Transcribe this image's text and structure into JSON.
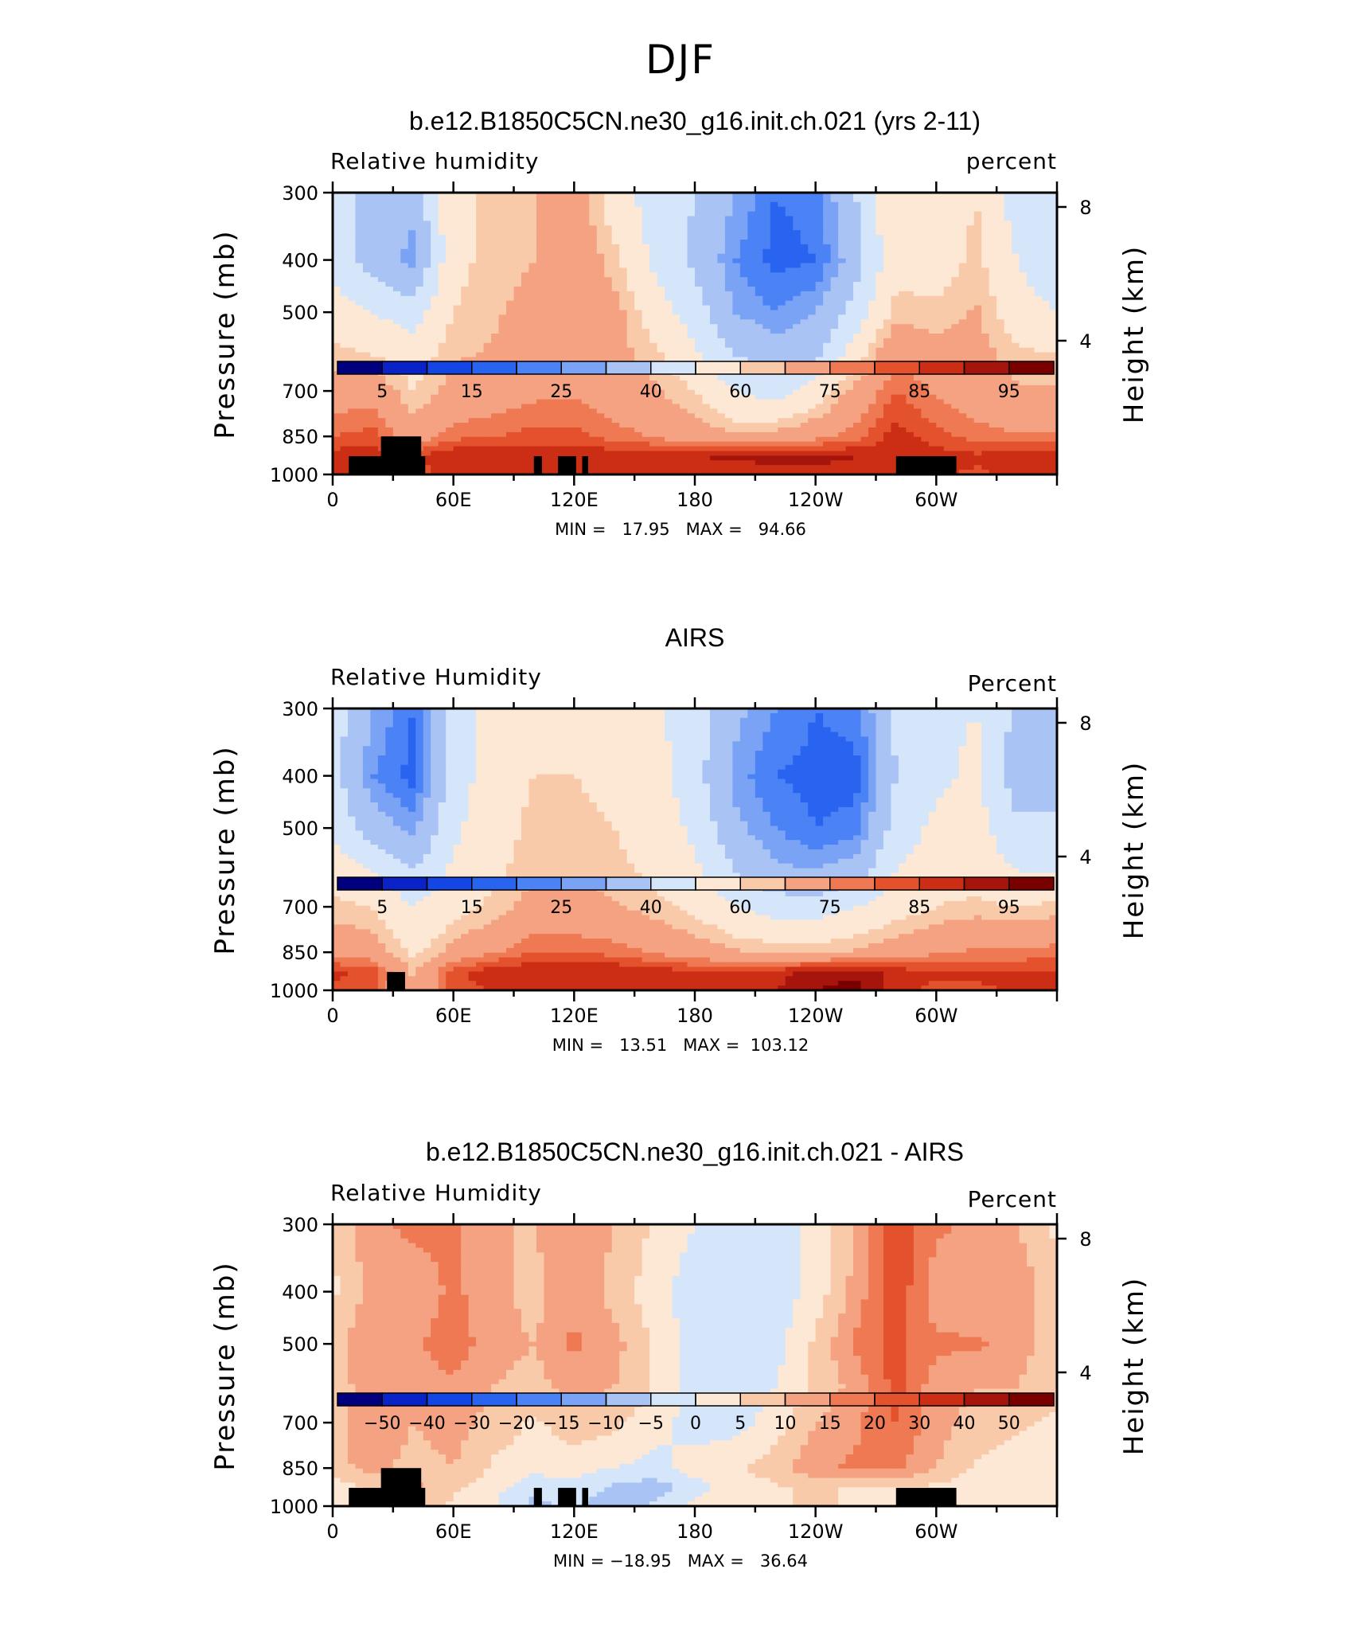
{
  "figure": {
    "title": "DJF"
  },
  "colors": {
    "levels": [
      "#00007f",
      "#0a23c8",
      "#1446e6",
      "#2864f0",
      "#4b82f5",
      "#7aa3f5",
      "#a9c3f5",
      "#d6e6fa",
      "#fde8d5",
      "#f9caa9",
      "#f4a281",
      "#ef7953",
      "#e4522d",
      "#cc2e15",
      "#a6150c",
      "#7a0000"
    ]
  },
  "panels": [
    {
      "title": "b.e12.B1850C5CN.ne30_g16.init.ch.021 (yrs 2-11)",
      "left_label": "Relative humidity",
      "right_label": "percent",
      "ylabel": "Pressure (mb)",
      "ylabel_right": "Height (km)",
      "stats": "MIN =   17.95   MAX =   94.66",
      "cbar_labels": [
        "5",
        "15",
        "25",
        "40",
        "60",
        "75",
        "85",
        "95"
      ]
    },
    {
      "title": "AIRS",
      "left_label": "Relative Humidity",
      "right_label": "Percent",
      "ylabel": "Pressure (mb)",
      "ylabel_right": "Height (km)",
      "stats": "MIN =   13.51   MAX =  103.12",
      "cbar_labels": [
        "5",
        "15",
        "25",
        "40",
        "60",
        "75",
        "85",
        "95"
      ]
    },
    {
      "title": "b.e12.B1850C5CN.ne30_g16.init.ch.021 - AIRS",
      "left_label": "Relative Humidity",
      "right_label": "Percent",
      "ylabel": "Pressure (mb)",
      "ylabel_right": "Height (km)",
      "stats": "MIN = −18.95   MAX =   36.64",
      "cbar_labels": [
        "−50",
        "−40",
        "−30",
        "−20",
        "−15",
        "−10",
        "−5",
        "0",
        "5",
        "10",
        "15",
        "20",
        "30",
        "40",
        "50"
      ]
    }
  ],
  "chart_data": [
    {
      "type": "heatmap",
      "title": "b.e12.B1850C5CN.ne30_g16.init.ch.021 (yrs 2-11)",
      "ylabel": "Pressure (mb)",
      "y2label": "Height (km)",
      "x_ticks": [
        "0",
        "60E",
        "120E",
        "180",
        "120W",
        "60W"
      ],
      "x_tick_values": [
        0,
        60,
        120,
        180,
        240,
        300
      ],
      "xlim": [
        0,
        360
      ],
      "y_ticks": [
        "300",
        "400",
        "500",
        "700",
        "850",
        "1000"
      ],
      "y_tick_values": [
        300,
        400,
        500,
        700,
        850,
        1000
      ],
      "ylim": [
        1000,
        300
      ],
      "y2_ticks": [
        "4",
        "8"
      ],
      "y2_tick_values": [
        4,
        8
      ],
      "colorbar_levels": [
        5,
        10,
        15,
        20,
        25,
        30,
        40,
        50,
        60,
        65,
        75,
        80,
        85,
        90,
        95
      ],
      "min": 17.95,
      "max": 94.66,
      "x": [
        0,
        20,
        40,
        60,
        80,
        100,
        120,
        140,
        160,
        180,
        200,
        220,
        240,
        260,
        280,
        300,
        320,
        340,
        360
      ],
      "y": [
        300,
        400,
        500,
        600,
        700,
        850,
        925,
        1000
      ],
      "z": [
        [
          48,
          35,
          32,
          58,
          62,
          65,
          70,
          55,
          45,
          40,
          30,
          20,
          22,
          40,
          60,
          55,
          60,
          45,
          40
        ],
        [
          46,
          35,
          28,
          58,
          62,
          65,
          72,
          62,
          48,
          38,
          25,
          18,
          20,
          35,
          58,
          55,
          62,
          50,
          42
        ],
        [
          55,
          50,
          45,
          60,
          64,
          68,
          74,
          68,
          55,
          45,
          30,
          25,
          30,
          45,
          62,
          62,
          66,
          55,
          50
        ],
        [
          62,
          60,
          55,
          64,
          66,
          70,
          73,
          68,
          62,
          52,
          40,
          35,
          38,
          55,
          75,
          68,
          68,
          62,
          60
        ],
        [
          70,
          72,
          60,
          68,
          70,
          73,
          74,
          70,
          66,
          60,
          50,
          45,
          55,
          68,
          80,
          74,
          70,
          66,
          66
        ],
        [
          80,
          82,
          70,
          78,
          80,
          82,
          82,
          78,
          74,
          70,
          66,
          68,
          72,
          78,
          88,
          82,
          78,
          76,
          76
        ],
        [
          88,
          88,
          84,
          90,
          90,
          89,
          90,
          88,
          89,
          90,
          91,
          92,
          92,
          90,
          90,
          88,
          86,
          88,
          88
        ],
        [
          86,
          84,
          82,
          88,
          89,
          88,
          88,
          86,
          86,
          86,
          86,
          88,
          88,
          88,
          86,
          86,
          84,
          86,
          86
        ]
      ]
    },
    {
      "type": "heatmap",
      "title": "AIRS",
      "ylabel": "Pressure (mb)",
      "y2label": "Height (km)",
      "x_ticks": [
        "0",
        "60E",
        "120E",
        "180",
        "120W",
        "60W"
      ],
      "x_tick_values": [
        0,
        60,
        120,
        180,
        240,
        300
      ],
      "xlim": [
        0,
        360
      ],
      "y_ticks": [
        "300",
        "400",
        "500",
        "700",
        "850",
        "1000"
      ],
      "y_tick_values": [
        300,
        400,
        500,
        700,
        850,
        1000
      ],
      "ylim": [
        1000,
        300
      ],
      "y2_ticks": [
        "4",
        "8"
      ],
      "y2_tick_values": [
        4,
        8
      ],
      "colorbar_levels": [
        5,
        10,
        15,
        20,
        25,
        30,
        40,
        50,
        60,
        65,
        75,
        80,
        85,
        90,
        95
      ],
      "min": 13.51,
      "max": 103.12,
      "x": [
        0,
        20,
        40,
        60,
        80,
        100,
        120,
        140,
        160,
        180,
        200,
        220,
        240,
        260,
        280,
        300,
        320,
        340,
        360
      ],
      "y": [
        300,
        400,
        500,
        600,
        700,
        850,
        925,
        1000
      ],
      "z": [
        [
          45,
          30,
          20,
          45,
          55,
          58,
          58,
          56,
          52,
          45,
          32,
          25,
          20,
          22,
          42,
          48,
          50,
          38,
          38
        ],
        [
          44,
          25,
          18,
          45,
          55,
          60,
          60,
          58,
          54,
          44,
          28,
          20,
          18,
          18,
          40,
          48,
          52,
          35,
          36
        ],
        [
          48,
          35,
          28,
          48,
          56,
          62,
          62,
          60,
          56,
          48,
          32,
          25,
          20,
          22,
          45,
          52,
          54,
          42,
          42
        ],
        [
          55,
          50,
          40,
          52,
          58,
          64,
          64,
          62,
          58,
          52,
          40,
          32,
          30,
          35,
          50,
          55,
          56,
          50,
          50
        ],
        [
          62,
          60,
          50,
          56,
          62,
          68,
          68,
          66,
          62,
          58,
          50,
          45,
          45,
          50,
          56,
          60,
          62,
          60,
          62
        ],
        [
          72,
          70,
          58,
          68,
          74,
          80,
          80,
          78,
          74,
          70,
          66,
          64,
          64,
          66,
          70,
          74,
          76,
          76,
          78
        ],
        [
          86,
          84,
          64,
          84,
          88,
          90,
          90,
          90,
          88,
          86,
          86,
          88,
          92,
          94,
          88,
          86,
          86,
          86,
          86
        ],
        [
          84,
          80,
          66,
          82,
          86,
          88,
          88,
          88,
          86,
          86,
          86,
          90,
          95,
          97,
          86,
          84,
          84,
          86,
          86
        ]
      ]
    },
    {
      "type": "heatmap",
      "title": "b.e12.B1850C5CN.ne30_g16.init.ch.021 - AIRS",
      "ylabel": "Pressure (mb)",
      "y2label": "Height (km)",
      "x_ticks": [
        "0",
        "60E",
        "120E",
        "180",
        "120W",
        "60W"
      ],
      "x_tick_values": [
        0,
        60,
        120,
        180,
        240,
        300
      ],
      "xlim": [
        0,
        360
      ],
      "y_ticks": [
        "300",
        "400",
        "500",
        "700",
        "850",
        "1000"
      ],
      "y_tick_values": [
        300,
        400,
        500,
        700,
        850,
        1000
      ],
      "ylim": [
        1000,
        300
      ],
      "y2_ticks": [
        "4",
        "8"
      ],
      "y2_tick_values": [
        4,
        8
      ],
      "colorbar_levels": [
        -50,
        -40,
        -30,
        -20,
        -15,
        -10,
        -5,
        0,
        5,
        10,
        15,
        20,
        30,
        40,
        50
      ],
      "min": -18.95,
      "max": 36.64,
      "x": [
        0,
        20,
        40,
        60,
        80,
        100,
        120,
        140,
        160,
        180,
        200,
        220,
        240,
        260,
        280,
        300,
        320,
        340,
        360
      ],
      "y": [
        300,
        400,
        500,
        600,
        700,
        850,
        925,
        1000
      ],
      "z": [
        [
          5,
          14,
          16,
          16,
          10,
          10,
          14,
          10,
          4,
          0,
          -2,
          -3,
          2,
          10,
          24,
          16,
          14,
          10,
          4
        ],
        [
          4,
          12,
          12,
          16,
          12,
          8,
          14,
          8,
          2,
          -3,
          -4,
          -3,
          2,
          12,
          24,
          12,
          10,
          14,
          6
        ],
        [
          8,
          15,
          14,
          18,
          12,
          10,
          16,
          12,
          4,
          -2,
          -3,
          -2,
          6,
          16,
          22,
          16,
          16,
          12,
          8
        ],
        [
          8,
          12,
          12,
          14,
          10,
          8,
          12,
          10,
          4,
          -2,
          -2,
          0,
          6,
          12,
          22,
          12,
          10,
          10,
          6
        ],
        [
          8,
          14,
          10,
          12,
          8,
          4,
          8,
          6,
          2,
          -2,
          -2,
          2,
          10,
          14,
          20,
          12,
          8,
          6,
          4
        ],
        [
          8,
          12,
          8,
          10,
          4,
          2,
          2,
          0,
          -2,
          2,
          4,
          8,
          14,
          16,
          16,
          10,
          4,
          2,
          2
        ],
        [
          2,
          6,
          12,
          6,
          2,
          -4,
          -2,
          -6,
          -8,
          -2,
          2,
          4,
          6,
          4,
          4,
          4,
          2,
          2,
          2
        ],
        [
          2,
          4,
          12,
          4,
          0,
          -6,
          -4,
          -10,
          -4,
          2,
          2,
          4,
          6,
          4,
          4,
          2,
          2,
          2,
          2
        ]
      ]
    }
  ]
}
